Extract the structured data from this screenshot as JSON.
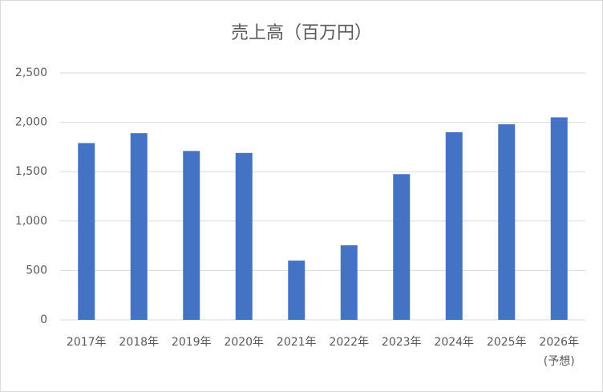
{
  "chart_data": {
    "type": "bar",
    "title": "売上高（百万円）",
    "categories": [
      "2017年",
      "2018年",
      "2019年",
      "2020年",
      "2021年",
      "2022年",
      "2023年",
      "2024年",
      "2025年",
      "2026年\n(予想)"
    ],
    "values": [
      1790,
      1890,
      1710,
      1690,
      600,
      755,
      1475,
      1900,
      1980,
      2050
    ],
    "color": "#4472c4",
    "ylim": [
      0,
      2500
    ],
    "yticks": [
      0,
      500,
      {
        "value": 1000,
        "label": "1,000"
      },
      {
        "value": 1500,
        "label": "1,500"
      },
      {
        "value": 2000,
        "label": "2,000"
      },
      {
        "value": 2500,
        "label": "2,500"
      }
    ],
    "grid": true
  }
}
